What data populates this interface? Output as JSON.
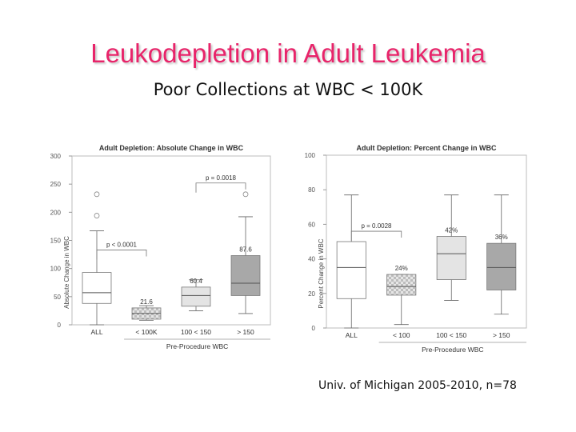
{
  "slide": {
    "title": "Leukodepletion in Adult Leukemia",
    "subtitle": "Poor Collections at WBC < 100K",
    "footer": "Univ. of Michigan 2005-2010, n=78"
  },
  "chart_data": [
    {
      "type": "box",
      "title": "Adult Depletion: Absolute Change in WBC",
      "xlabel": "Pre-Procedure WBC",
      "ylabel": "Absolute Change in WBC",
      "ylim": [
        0,
        300
      ],
      "yticks": [
        0,
        50,
        100,
        150,
        200,
        250,
        300
      ],
      "categories": [
        "ALL",
        "< 100K",
        "100 < 150",
        "> 150"
      ],
      "boxes": [
        {
          "category": "ALL",
          "min": 0,
          "q1": 38,
          "median": 57,
          "q3": 93,
          "max": 167,
          "outliers": [
            194,
            232
          ],
          "color": "#ffffff",
          "label": ""
        },
        {
          "category": "< 100K",
          "min": 8,
          "q1": 10,
          "median": 20,
          "q3": 30,
          "max": 34,
          "outliers": [],
          "color": "#d4d4d4",
          "label": "21.6",
          "pattern": "checker"
        },
        {
          "category": "100 < 150",
          "min": 25,
          "q1": 33,
          "median": 52,
          "q3": 67,
          "max": 80,
          "outliers": [],
          "color": "#e4e4e4",
          "label": "60.4"
        },
        {
          "category": "> 150",
          "min": 20,
          "q1": 52,
          "median": 74,
          "q3": 123,
          "max": 192,
          "outliers": [
            232
          ],
          "color": "#a8a8a8",
          "label": "87.6"
        }
      ],
      "annotations": [
        {
          "text": "p < 0.0001",
          "from": "ALL",
          "to": "< 100K",
          "y": 133
        },
        {
          "text": "p = 0.0018",
          "from": "100 < 150",
          "to": "> 150",
          "y": 252
        }
      ],
      "grid": false
    },
    {
      "type": "box",
      "title": "Adult Depletion: Percent Change in WBC",
      "xlabel": "Pre-Procedure WBC",
      "ylabel": "Percent Change in WBC",
      "ylim": [
        0,
        100
      ],
      "yticks": [
        0,
        20,
        40,
        60,
        80,
        100
      ],
      "categories": [
        "ALL",
        "< 100",
        "100 < 150",
        "> 150"
      ],
      "boxes": [
        {
          "category": "ALL",
          "min": 0,
          "q1": 17,
          "median": 35,
          "q3": 50,
          "max": 77,
          "outliers": [],
          "color": "#ffffff",
          "label": ""
        },
        {
          "category": "< 100",
          "min": 2,
          "q1": 19,
          "median": 24,
          "q3": 31,
          "max": 31,
          "outliers": [],
          "color": "#d4d4d4",
          "label": "24%",
          "pattern": "checker"
        },
        {
          "category": "100 < 150",
          "min": 16,
          "q1": 28,
          "median": 43,
          "q3": 53,
          "max": 77,
          "outliers": [],
          "color": "#e4e4e4",
          "label": "42%"
        },
        {
          "category": "> 150",
          "min": 8,
          "q1": 22,
          "median": 35,
          "q3": 49,
          "max": 77,
          "outliers": [],
          "color": "#a8a8a8",
          "label": "36%"
        }
      ],
      "annotations": [
        {
          "text": "p = 0.0028",
          "from": "ALL",
          "to": "< 100",
          "y": 56
        }
      ],
      "grid": false
    }
  ]
}
